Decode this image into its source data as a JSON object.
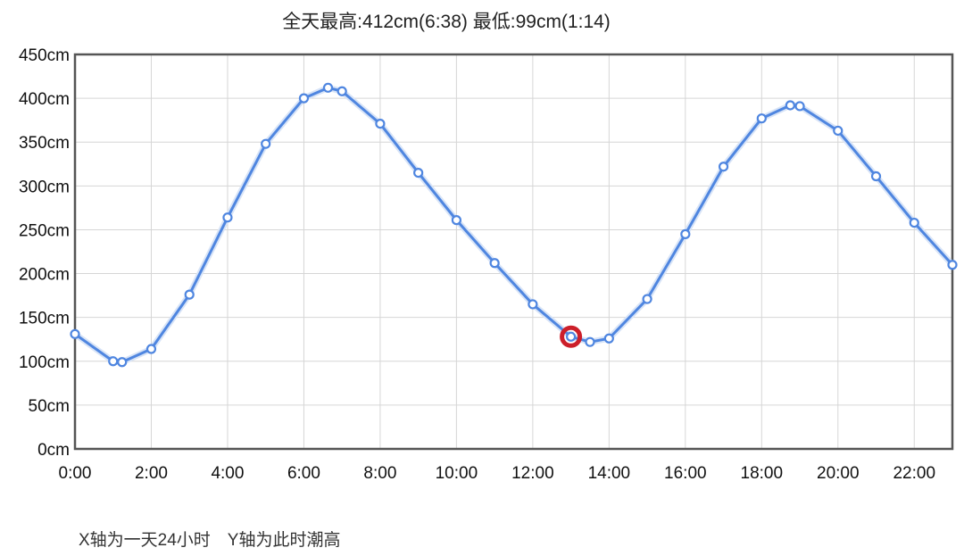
{
  "header": {
    "title": "全天最高:412cm(6:38) 最低:99cm(1:14)"
  },
  "footer": {
    "note": "X轴为一天24小时　Y轴为此时潮高"
  },
  "chart_data": {
    "type": "line",
    "title": "全天最高:412cm(6:38) 最低:99cm(1:14)",
    "xlabel": "",
    "ylabel": "",
    "x_unit": "hour",
    "xlim": [
      0,
      23
    ],
    "ylim": [
      0,
      450
    ],
    "grid": true,
    "x_ticks": [
      "0:00",
      "2:00",
      "4:00",
      "6:00",
      "8:00",
      "10:00",
      "12:00",
      "14:00",
      "16:00",
      "18:00",
      "20:00",
      "22:00"
    ],
    "y_ticks": [
      "0cm",
      "50cm",
      "100cm",
      "150cm",
      "200cm",
      "250cm",
      "300cm",
      "350cm",
      "400cm",
      "450cm"
    ],
    "line_color": "#4f86e0",
    "highlight_color": "#cc1f2a",
    "series": [
      {
        "points": [
          {
            "x": "0:00",
            "y": 131
          },
          {
            "x": "1:00",
            "y": 100
          },
          {
            "x": "1:14",
            "y": 99
          },
          {
            "x": "2:00",
            "y": 114
          },
          {
            "x": "3:00",
            "y": 176
          },
          {
            "x": "4:00",
            "y": 264
          },
          {
            "x": "5:00",
            "y": 348
          },
          {
            "x": "6:00",
            "y": 400
          },
          {
            "x": "6:38",
            "y": 412
          },
          {
            "x": "7:00",
            "y": 408
          },
          {
            "x": "8:00",
            "y": 371
          },
          {
            "x": "9:00",
            "y": 315
          },
          {
            "x": "10:00",
            "y": 261
          },
          {
            "x": "11:00",
            "y": 212
          },
          {
            "x": "12:00",
            "y": 165
          },
          {
            "x": "13:00",
            "y": 128
          },
          {
            "x": "13:30",
            "y": 122
          },
          {
            "x": "14:00",
            "y": 126
          },
          {
            "x": "15:00",
            "y": 171
          },
          {
            "x": "16:00",
            "y": 245
          },
          {
            "x": "17:00",
            "y": 322
          },
          {
            "x": "18:00",
            "y": 377
          },
          {
            "x": "18:45",
            "y": 392
          },
          {
            "x": "19:00",
            "y": 391
          },
          {
            "x": "20:00",
            "y": 363
          },
          {
            "x": "21:00",
            "y": 311
          },
          {
            "x": "22:00",
            "y": 258
          },
          {
            "x": "23:00",
            "y": 210
          }
        ]
      }
    ],
    "highlight": {
      "x": "13:00",
      "y": 128
    }
  }
}
